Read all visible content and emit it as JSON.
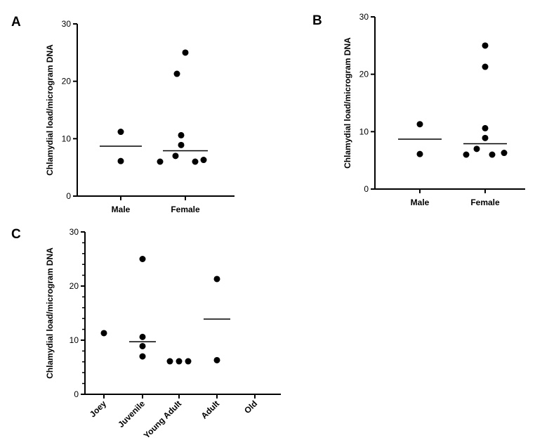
{
  "chart_data": [
    {
      "panel": "A",
      "type": "scatter",
      "ylabel": "Chlamydial load/microgram DNA",
      "ylim": [
        0,
        30
      ],
      "yticks": [
        "0",
        "10",
        "20",
        "30"
      ],
      "categories": [
        "Male",
        "Female"
      ],
      "points": [
        {
          "category": "Male",
          "values": [
            11.2,
            6.1
          ]
        },
        {
          "category": "Female",
          "values": [
            25.0,
            21.3,
            10.6,
            8.9,
            7.0,
            6.0,
            6.0,
            6.3
          ]
        }
      ],
      "means": [
        8.7,
        7.9
      ]
    },
    {
      "panel": "B",
      "type": "scatter",
      "ylabel": "Chlamydial load/microgram DNA",
      "ylim": [
        0,
        30
      ],
      "yticks": [
        "0",
        "10",
        "20",
        "30"
      ],
      "categories": [
        "Male",
        "Female"
      ],
      "points": [
        {
          "category": "Male",
          "values": [
            11.3,
            6.1
          ]
        },
        {
          "category": "Female",
          "values": [
            25.0,
            21.3,
            10.6,
            8.9,
            7.0,
            6.0,
            6.0,
            6.3
          ]
        }
      ],
      "means": [
        8.7,
        7.9
      ]
    },
    {
      "panel": "C",
      "type": "scatter",
      "ylabel": "Chlamydial load/microgram DNA",
      "ylim": [
        0,
        30
      ],
      "yticks": [
        "0",
        "10",
        "20",
        "30"
      ],
      "categories": [
        "Joey",
        "Juvenile",
        "Young Adult",
        "Adult",
        "Old"
      ],
      "points": [
        {
          "category": "Joey",
          "values": [
            11.3
          ]
        },
        {
          "category": "Juvenile",
          "values": [
            25.0,
            10.6,
            8.9,
            7.0
          ]
        },
        {
          "category": "Young Adult",
          "values": [
            6.1,
            6.1,
            6.1
          ]
        },
        {
          "category": "Adult",
          "values": [
            21.3,
            6.3
          ]
        },
        {
          "category": "Old",
          "values": []
        }
      ],
      "means": [
        null,
        9.7,
        null,
        13.9,
        null
      ]
    }
  ]
}
